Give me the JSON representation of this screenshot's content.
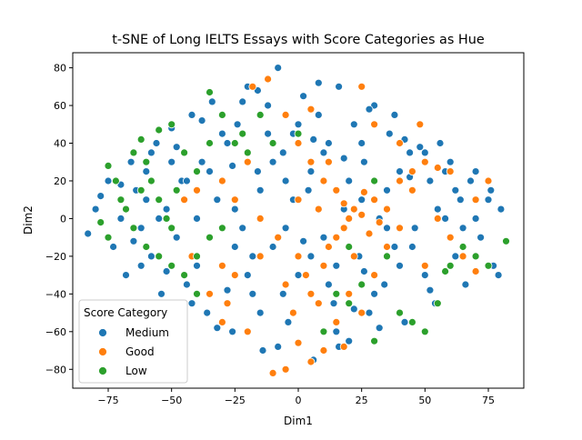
{
  "chart_data": {
    "type": "scatter",
    "title": "t-SNE of Long IELTS Essays with Score Categories as Hue",
    "xlabel": "Dim1",
    "ylabel": "Dim2",
    "xlim": [
      -89,
      89
    ],
    "ylim": [
      -90,
      88
    ],
    "xticks": [
      -75,
      -50,
      -25,
      0,
      25,
      50,
      75
    ],
    "yticks": [
      -80,
      -60,
      -40,
      -20,
      0,
      20,
      40,
      60,
      80
    ],
    "xtick_labels": [
      "−75",
      "−50",
      "−25",
      "0",
      "25",
      "50",
      "75"
    ],
    "ytick_labels": [
      "−80",
      "−60",
      "−40",
      "−20",
      "0",
      "20",
      "40",
      "60",
      "80"
    ],
    "grid": false,
    "legend": {
      "title": "Score Category",
      "placement": "lower-left",
      "entries": [
        "Medium",
        "Good",
        "Low"
      ]
    },
    "series": [
      {
        "name": "Medium",
        "color": "#1f77b4",
        "points": [
          [
            -83,
            -8
          ],
          [
            -80,
            5
          ],
          [
            -78,
            12
          ],
          [
            -75,
            20
          ],
          [
            -73,
            -15
          ],
          [
            -70,
            0
          ],
          [
            -68,
            -30
          ],
          [
            -66,
            30
          ],
          [
            -64,
            15
          ],
          [
            -62,
            -5
          ],
          [
            -60,
            25
          ],
          [
            -58,
            -20
          ],
          [
            -56,
            40
          ],
          [
            -54,
            -40
          ],
          [
            -52,
            5
          ],
          [
            -50,
            48
          ],
          [
            -48,
            -10
          ],
          [
            -46,
            20
          ],
          [
            -44,
            -35
          ],
          [
            -42,
            55
          ],
          [
            -40,
            0
          ],
          [
            -38,
            30
          ],
          [
            -36,
            -50
          ],
          [
            -34,
            62
          ],
          [
            -32,
            10
          ],
          [
            -30,
            -25
          ],
          [
            -28,
            40
          ],
          [
            -26,
            -60
          ],
          [
            -24,
            50
          ],
          [
            -22,
            -5
          ],
          [
            -20,
            70
          ],
          [
            -18,
            -40
          ],
          [
            -16,
            25
          ],
          [
            -14,
            -70
          ],
          [
            -12,
            60
          ],
          [
            -10,
            -15
          ],
          [
            -8,
            80
          ],
          [
            -6,
            35
          ],
          [
            -4,
            -55
          ],
          [
            -2,
            45
          ],
          [
            0,
            -30
          ],
          [
            2,
            65
          ],
          [
            4,
            15
          ],
          [
            6,
            -75
          ],
          [
            8,
            55
          ],
          [
            10,
            -10
          ],
          [
            12,
            40
          ],
          [
            14,
            -45
          ],
          [
            16,
            70
          ],
          [
            18,
            5
          ],
          [
            20,
            -65
          ],
          [
            22,
            50
          ],
          [
            24,
            -20
          ],
          [
            26,
            30
          ],
          [
            28,
            -50
          ],
          [
            30,
            60
          ],
          [
            32,
            0
          ],
          [
            34,
            -35
          ],
          [
            36,
            45
          ],
          [
            38,
            -15
          ],
          [
            40,
            25
          ],
          [
            42,
            -55
          ],
          [
            44,
            35
          ],
          [
            46,
            -5
          ],
          [
            48,
            50
          ],
          [
            50,
            -30
          ],
          [
            52,
            20
          ],
          [
            54,
            -45
          ],
          [
            56,
            40
          ],
          [
            58,
            0
          ],
          [
            60,
            30
          ],
          [
            62,
            -20
          ],
          [
            64,
            10
          ],
          [
            66,
            -35
          ],
          [
            68,
            20
          ],
          [
            70,
            0
          ],
          [
            72,
            -10
          ],
          [
            75,
            10
          ],
          [
            77,
            -25
          ],
          [
            79,
            -30
          ],
          [
            80,
            5
          ],
          [
            76,
            15
          ],
          [
            -45,
            10
          ],
          [
            -35,
            -10
          ],
          [
            -25,
            5
          ],
          [
            -15,
            15
          ],
          [
            -5,
            -5
          ],
          [
            5,
            25
          ],
          [
            15,
            -25
          ],
          [
            25,
            10
          ],
          [
            35,
            15
          ],
          [
            45,
            -15
          ],
          [
            55,
            5
          ],
          [
            -55,
            0
          ],
          [
            -30,
            45
          ],
          [
            -20,
            -30
          ],
          [
            10,
            35
          ],
          [
            30,
            -40
          ],
          [
            -40,
            -25
          ],
          [
            -10,
            30
          ],
          [
            20,
            20
          ],
          [
            40,
            -25
          ],
          [
            -50,
            30
          ],
          [
            -60,
            10
          ],
          [
            50,
            35
          ],
          [
            60,
            -10
          ],
          [
            -15,
            -50
          ],
          [
            0,
            50
          ],
          [
            15,
            -60
          ],
          [
            -5,
            20
          ],
          [
            5,
            -20
          ],
          [
            25,
            40
          ],
          [
            -25,
            -15
          ],
          [
            -35,
            25
          ],
          [
            35,
            -5
          ],
          [
            -65,
            -12
          ],
          [
            65,
            -5
          ],
          [
            -70,
            18
          ],
          [
            70,
            25
          ],
          [
            -42,
            -45
          ],
          [
            42,
            42
          ],
          [
            -22,
            62
          ],
          [
            22,
            -48
          ],
          [
            -8,
            -68
          ],
          [
            8,
            72
          ],
          [
            -28,
            -38
          ],
          [
            28,
            58
          ],
          [
            -52,
            -28
          ],
          [
            52,
            -38
          ],
          [
            -12,
            45
          ],
          [
            12,
            -35
          ],
          [
            -38,
            52
          ],
          [
            38,
            55
          ],
          [
            -48,
            38
          ],
          [
            48,
            38
          ],
          [
            -18,
            -20
          ],
          [
            18,
            32
          ],
          [
            -2,
            10
          ],
          [
            2,
            -12
          ],
          [
            -58,
            35
          ],
          [
            58,
            25
          ],
          [
            -32,
            -58
          ],
          [
            32,
            -58
          ],
          [
            -44,
            20
          ],
          [
            44,
            22
          ],
          [
            -26,
            28
          ],
          [
            26,
            -28
          ],
          [
            -6,
            -40
          ],
          [
            6,
            42
          ],
          [
            -62,
            -25
          ],
          [
            62,
            15
          ],
          [
            -16,
            68
          ],
          [
            16,
            -68
          ]
        ]
      },
      {
        "name": "Good",
        "color": "#ff7f0e",
        "points": [
          [
            -10,
            -82
          ],
          [
            -5,
            -80
          ],
          [
            0,
            -66
          ],
          [
            5,
            -76
          ],
          [
            10,
            -70
          ],
          [
            18,
            -68
          ],
          [
            -20,
            -60
          ],
          [
            -30,
            -55
          ],
          [
            -35,
            -40
          ],
          [
            -25,
            -30
          ],
          [
            -15,
            -20
          ],
          [
            -5,
            -35
          ],
          [
            5,
            -40
          ],
          [
            10,
            -25
          ],
          [
            15,
            -10
          ],
          [
            20,
            0
          ],
          [
            22,
            5
          ],
          [
            25,
            2
          ],
          [
            18,
            -5
          ],
          [
            28,
            -8
          ],
          [
            30,
            10
          ],
          [
            35,
            5
          ],
          [
            15,
            15
          ],
          [
            10,
            20
          ],
          [
            5,
            30
          ],
          [
            0,
            40
          ],
          [
            -5,
            55
          ],
          [
            5,
            58
          ],
          [
            -12,
            74
          ],
          [
            -20,
            30
          ],
          [
            -30,
            20
          ],
          [
            -40,
            15
          ],
          [
            -45,
            10
          ],
          [
            -42,
            -20
          ],
          [
            -30,
            -25
          ],
          [
            40,
            20
          ],
          [
            45,
            25
          ],
          [
            50,
            30
          ],
          [
            55,
            27
          ],
          [
            60,
            25
          ],
          [
            65,
            -20
          ],
          [
            60,
            -10
          ],
          [
            70,
            10
          ],
          [
            75,
            20
          ],
          [
            48,
            50
          ],
          [
            40,
            40
          ],
          [
            30,
            50
          ],
          [
            25,
            70
          ],
          [
            -18,
            70
          ],
          [
            0,
            10
          ],
          [
            12,
            30
          ],
          [
            20,
            -40
          ],
          [
            30,
            -30
          ],
          [
            25,
            -50
          ],
          [
            15,
            -55
          ],
          [
            8,
            -45
          ],
          [
            0,
            -20
          ],
          [
            -8,
            -10
          ],
          [
            -15,
            0
          ],
          [
            35,
            -15
          ],
          [
            50,
            -25
          ],
          [
            55,
            0
          ],
          [
            -25,
            10
          ],
          [
            12,
            -15
          ],
          [
            22,
            -20
          ],
          [
            18,
            8
          ],
          [
            26,
            14
          ],
          [
            32,
            -2
          ],
          [
            8,
            5
          ],
          [
            -2,
            -50
          ],
          [
            40,
            -5
          ],
          [
            45,
            15
          ],
          [
            -35,
            -10
          ],
          [
            70,
            -28
          ],
          [
            -28,
            -45
          ],
          [
            3,
            -30
          ]
        ]
      },
      {
        "name": "Low",
        "color": "#2ca02c",
        "points": [
          [
            -75,
            28
          ],
          [
            -72,
            20
          ],
          [
            -70,
            10
          ],
          [
            -68,
            5
          ],
          [
            -65,
            -5
          ],
          [
            -62,
            15
          ],
          [
            -60,
            30
          ],
          [
            -58,
            20
          ],
          [
            -55,
            10
          ],
          [
            -52,
            0
          ],
          [
            -50,
            -5
          ],
          [
            -48,
            15
          ],
          [
            -65,
            35
          ],
          [
            -62,
            42
          ],
          [
            -55,
            47
          ],
          [
            -50,
            50
          ],
          [
            -45,
            35
          ],
          [
            -40,
            25
          ],
          [
            -35,
            67
          ],
          [
            -30,
            55
          ],
          [
            -25,
            40
          ],
          [
            -78,
            -2
          ],
          [
            -75,
            -10
          ],
          [
            -60,
            -15
          ],
          [
            -55,
            -20
          ],
          [
            -50,
            -25
          ],
          [
            -45,
            -30
          ],
          [
            -40,
            -40
          ],
          [
            -35,
            -10
          ],
          [
            -30,
            -5
          ],
          [
            -20,
            35
          ],
          [
            -10,
            40
          ],
          [
            0,
            45
          ],
          [
            10,
            -60
          ],
          [
            15,
            -40
          ],
          [
            20,
            -45
          ],
          [
            25,
            -35
          ],
          [
            30,
            20
          ],
          [
            35,
            -20
          ],
          [
            40,
            -50
          ],
          [
            45,
            -55
          ],
          [
            50,
            -60
          ],
          [
            55,
            -45
          ],
          [
            60,
            -25
          ],
          [
            65,
            -15
          ],
          [
            70,
            -20
          ],
          [
            75,
            -25
          ],
          [
            82,
            -12
          ],
          [
            30,
            -65
          ],
          [
            -40,
            -20
          ],
          [
            20,
            -15
          ],
          [
            -15,
            55
          ],
          [
            -22,
            45
          ],
          [
            -35,
            40
          ],
          [
            58,
            -28
          ]
        ]
      }
    ]
  }
}
